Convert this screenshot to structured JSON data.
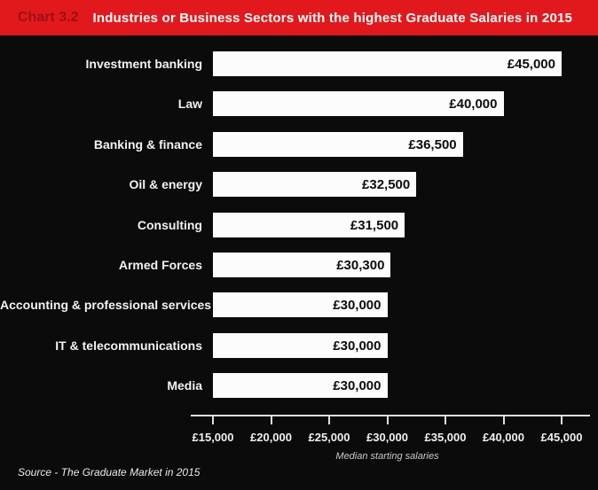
{
  "header": {
    "chart_label": "Chart 3.2",
    "title": "Industries or Business Sectors with the highest Graduate Salaries in 2015"
  },
  "chart_data": {
    "type": "bar",
    "orientation": "horizontal",
    "title": "Industries or Business Sectors with the highest Graduate Salaries in 2015",
    "categories": [
      "Investment banking",
      "Law",
      "Banking & finance",
      "Oil & energy",
      "Consulting",
      "Armed Forces",
      "Accounting & professional services",
      "IT & telecommunications",
      "Media"
    ],
    "values": [
      45000,
      40000,
      36500,
      32500,
      31500,
      30300,
      30000,
      30000,
      30000
    ],
    "value_labels": [
      "£45,000",
      "£40,000",
      "£36,500",
      "£32,500",
      "£31,500",
      "£30,300",
      "£30,000",
      "£30,000",
      "£30,000"
    ],
    "xlabel": "Median starting salaries",
    "ylabel": "",
    "xlim": [
      15000,
      45000
    ],
    "x_ticks": [
      15000,
      20000,
      25000,
      30000,
      35000,
      40000,
      45000
    ],
    "x_tick_labels": [
      "£15,000",
      "£20,000",
      "£25,000",
      "£30,000",
      "£35,000",
      "£40,000",
      "£45,000"
    ],
    "grid": false,
    "legend": false
  },
  "footer": {
    "source": "Source - The Graduate Market in 2015"
  },
  "colors": {
    "background": "#0b0b0b",
    "header_red": "#e2191c",
    "chart_label_dark_red": "#9a1114",
    "bar_white": "#fcfcfc",
    "value_text_black": "#0d0d0d",
    "axis_white": "#dedede"
  }
}
